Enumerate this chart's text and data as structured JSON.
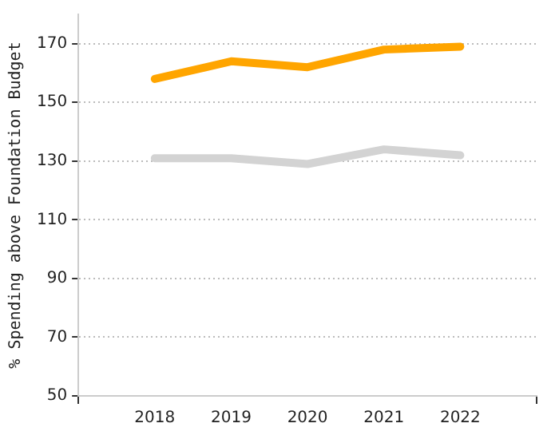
{
  "chart_data": {
    "type": "line",
    "ylabel": "% Spending above Foundation Budget",
    "x": [
      2018,
      2019,
      2020,
      2021,
      2022
    ],
    "xlim": [
      2017,
      2023
    ],
    "xticks": [
      {
        "value": 2017,
        "label": null
      },
      2018,
      2019,
      2020,
      2021,
      2022,
      {
        "value": 2023,
        "label": null
      }
    ],
    "ylim": [
      50,
      180
    ],
    "yticks": [
      50,
      70,
      90,
      110,
      130,
      150,
      170
    ],
    "series": [
      {
        "color": "#ffa500",
        "values": [
          158,
          164,
          162,
          168,
          169
        ]
      },
      {
        "color": "#d3d3d3",
        "values": [
          131,
          131,
          129,
          134,
          132
        ]
      }
    ],
    "grid": "y",
    "legend": false,
    "marker": "none",
    "line_style": "solid"
  }
}
